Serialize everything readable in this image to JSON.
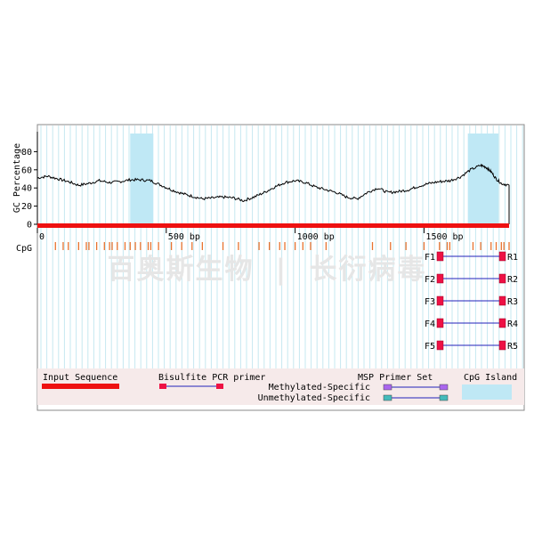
{
  "chart_data": {
    "type": "line",
    "ylabel": "GC Percentage",
    "y_ticks": [
      "0",
      "20",
      "40",
      "60",
      "80"
    ],
    "ylim": [
      0,
      100
    ],
    "xlim": [
      0,
      1830
    ],
    "x_ticks": [
      {
        "label": "0",
        "value": 0
      },
      {
        "label": "500 bp",
        "value": 500
      },
      {
        "label": "1000 bp",
        "value": 1000
      },
      {
        "label": "1500 bp",
        "value": 1500
      }
    ],
    "grid": true,
    "gc_series": {
      "x": [
        0,
        40,
        80,
        120,
        160,
        200,
        240,
        280,
        320,
        360,
        400,
        440,
        480,
        520,
        560,
        600,
        640,
        680,
        720,
        760,
        800,
        840,
        880,
        920,
        960,
        1000,
        1040,
        1080,
        1120,
        1160,
        1200,
        1240,
        1280,
        1320,
        1360,
        1400,
        1440,
        1480,
        1520,
        1560,
        1600,
        1640,
        1680,
        1720,
        1740,
        1760,
        1780,
        1800,
        1830
      ],
      "y": [
        51,
        53,
        50,
        47,
        43,
        45,
        48,
        46,
        47,
        49,
        49,
        48,
        43,
        38,
        34,
        31,
        28,
        29,
        30,
        29,
        26,
        30,
        35,
        41,
        46,
        48,
        46,
        41,
        38,
        35,
        30,
        28,
        35,
        40,
        35,
        36,
        38,
        42,
        45,
        47,
        48,
        52,
        60,
        65,
        63,
        58,
        50,
        45,
        43
      ]
    },
    "cpg_islands": [
      [
        360,
        450
      ],
      [
        1670,
        1850
      ]
    ],
    "cpg_sites": [
      70,
      100,
      120,
      160,
      190,
      200,
      230,
      260,
      280,
      290,
      310,
      340,
      360,
      380,
      400,
      430,
      440,
      470,
      520,
      560,
      600,
      640,
      720,
      780,
      860,
      900,
      940,
      960,
      1000,
      1030,
      1060,
      1120,
      1300,
      1370,
      1430,
      1500,
      1560,
      1590,
      1600,
      1690,
      1720,
      1760,
      1780,
      1800,
      1810,
      1830
    ],
    "cpg_label": "CpG",
    "primers": [
      {
        "f": "F1",
        "r": "R1",
        "start": 1690,
        "end": 1880
      },
      {
        "f": "F2",
        "r": "R2",
        "start": 1690,
        "end": 1880
      },
      {
        "f": "F3",
        "r": "R3",
        "start": 1690,
        "end": 1880
      },
      {
        "f": "F4",
        "r": "R4",
        "start": 1690,
        "end": 1880
      },
      {
        "f": "F5",
        "r": "R5",
        "start": 1690,
        "end": 1880
      }
    ],
    "legend": {
      "input_sequence": "Input Sequence",
      "bisulfite": "Bisulfite PCR primer",
      "msp": "MSP Primer Set",
      "methylated": "Methylated-Specific",
      "unmethylated": "Unmethylated-Specific",
      "cpg_island": "CpG Island"
    },
    "colors": {
      "sequence": "#ee1111",
      "island": "#bfe8f5",
      "cpg": "#e8732f",
      "primer_box": "#ee1144",
      "primer_line": "#2222bb",
      "methylated_box": "#aa66ee",
      "unmethylated_box": "#44bbbb",
      "grid": "#c6e8f0",
      "legend_bg": "#f6eaea"
    },
    "watermark": "百奥斯生物 | 长衍病毒"
  }
}
